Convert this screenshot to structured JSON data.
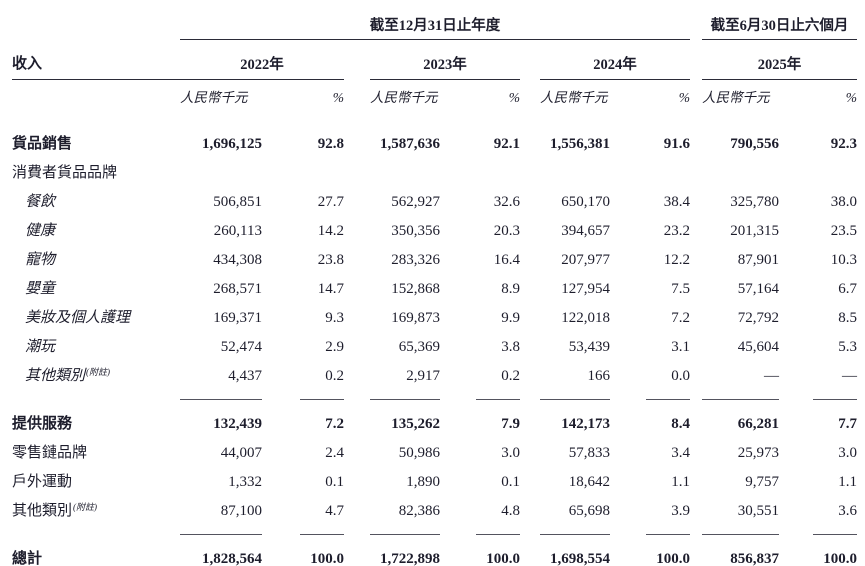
{
  "colors": {
    "text": "#1d1d2c",
    "rule": "#53535e",
    "rule_strong": "#2b2b38",
    "bg": "#ffffff"
  },
  "table": {
    "row_header": "收入",
    "col_groups": [
      {
        "banner": "截至12月31日止年度",
        "years": [
          "2022年",
          "2023年",
          "2024年"
        ]
      },
      {
        "banner": "截至6月30日止六個月",
        "years": [
          "2025年"
        ]
      }
    ],
    "subheaders": {
      "amount": "人民幣千元",
      "pct": "%"
    },
    "rows": [
      {
        "type": "data",
        "label": "貨品銷售",
        "bold": true,
        "italic": false,
        "indent": 0,
        "values": [
          "1,696,125",
          "92.8",
          "1,587,636",
          "92.1",
          "1,556,381",
          "91.6",
          "790,556",
          "92.3"
        ]
      },
      {
        "type": "data",
        "label": "消費者貨品品牌",
        "bold": false,
        "italic": false,
        "indent": 0,
        "values": null
      },
      {
        "type": "data",
        "label": "餐飲",
        "bold": false,
        "italic": true,
        "indent": 1,
        "values": [
          "506,851",
          "27.7",
          "562,927",
          "32.6",
          "650,170",
          "38.4",
          "325,780",
          "38.0"
        ]
      },
      {
        "type": "data",
        "label": "健康",
        "bold": false,
        "italic": true,
        "indent": 1,
        "values": [
          "260,113",
          "14.2",
          "350,356",
          "20.3",
          "394,657",
          "23.2",
          "201,315",
          "23.5"
        ]
      },
      {
        "type": "data",
        "label": "寵物",
        "bold": false,
        "italic": true,
        "indent": 1,
        "values": [
          "434,308",
          "23.8",
          "283,326",
          "16.4",
          "207,977",
          "12.2",
          "87,901",
          "10.3"
        ]
      },
      {
        "type": "data",
        "label": "嬰童",
        "bold": false,
        "italic": true,
        "indent": 1,
        "values": [
          "268,571",
          "14.7",
          "152,868",
          "8.9",
          "127,954",
          "7.5",
          "57,164",
          "6.7"
        ]
      },
      {
        "type": "data",
        "label": "美妝及個人護理",
        "bold": false,
        "italic": true,
        "indent": 1,
        "values": [
          "169,371",
          "9.3",
          "169,873",
          "9.9",
          "122,018",
          "7.2",
          "72,792",
          "8.5"
        ]
      },
      {
        "type": "data",
        "label": "潮玩",
        "bold": false,
        "italic": true,
        "indent": 1,
        "values": [
          "52,474",
          "2.9",
          "65,369",
          "3.8",
          "53,439",
          "3.1",
          "45,604",
          "5.3"
        ]
      },
      {
        "type": "data",
        "label": "其他類別",
        "note": "(附註)",
        "bold": false,
        "italic": true,
        "indent": 1,
        "values": [
          "4,437",
          "0.2",
          "2,917",
          "0.2",
          "166",
          "0.0",
          "—",
          "—"
        ]
      },
      {
        "type": "rule"
      },
      {
        "type": "spacer",
        "h": 10
      },
      {
        "type": "data",
        "label": "提供服務",
        "bold": true,
        "italic": false,
        "indent": 0,
        "values": [
          "132,439",
          "7.2",
          "135,262",
          "7.9",
          "142,173",
          "8.4",
          "66,281",
          "7.7"
        ]
      },
      {
        "type": "data",
        "label": "零售鏈品牌",
        "bold": false,
        "italic": false,
        "indent": 0,
        "values": [
          "44,007",
          "2.4",
          "50,986",
          "3.0",
          "57,833",
          "3.4",
          "25,973",
          "3.0"
        ]
      },
      {
        "type": "data",
        "label": "戶外運動",
        "bold": false,
        "italic": false,
        "indent": 0,
        "values": [
          "1,332",
          "0.1",
          "1,890",
          "0.1",
          "18,642",
          "1.1",
          "9,757",
          "1.1"
        ]
      },
      {
        "type": "data",
        "label": "其他類別",
        "note": "(附註)",
        "bold": false,
        "italic": false,
        "indent": 0,
        "values": [
          "87,100",
          "4.7",
          "82,386",
          "4.8",
          "65,698",
          "3.9",
          "30,551",
          "3.6"
        ]
      },
      {
        "type": "rule"
      },
      {
        "type": "spacer",
        "h": 10
      },
      {
        "type": "data",
        "label": "總計",
        "bold": true,
        "italic": false,
        "indent": 0,
        "values": [
          "1,828,564",
          "100.0",
          "1,722,898",
          "100.0",
          "1,698,554",
          "100.0",
          "856,837",
          "100.0"
        ]
      },
      {
        "type": "dblrule"
      }
    ]
  }
}
